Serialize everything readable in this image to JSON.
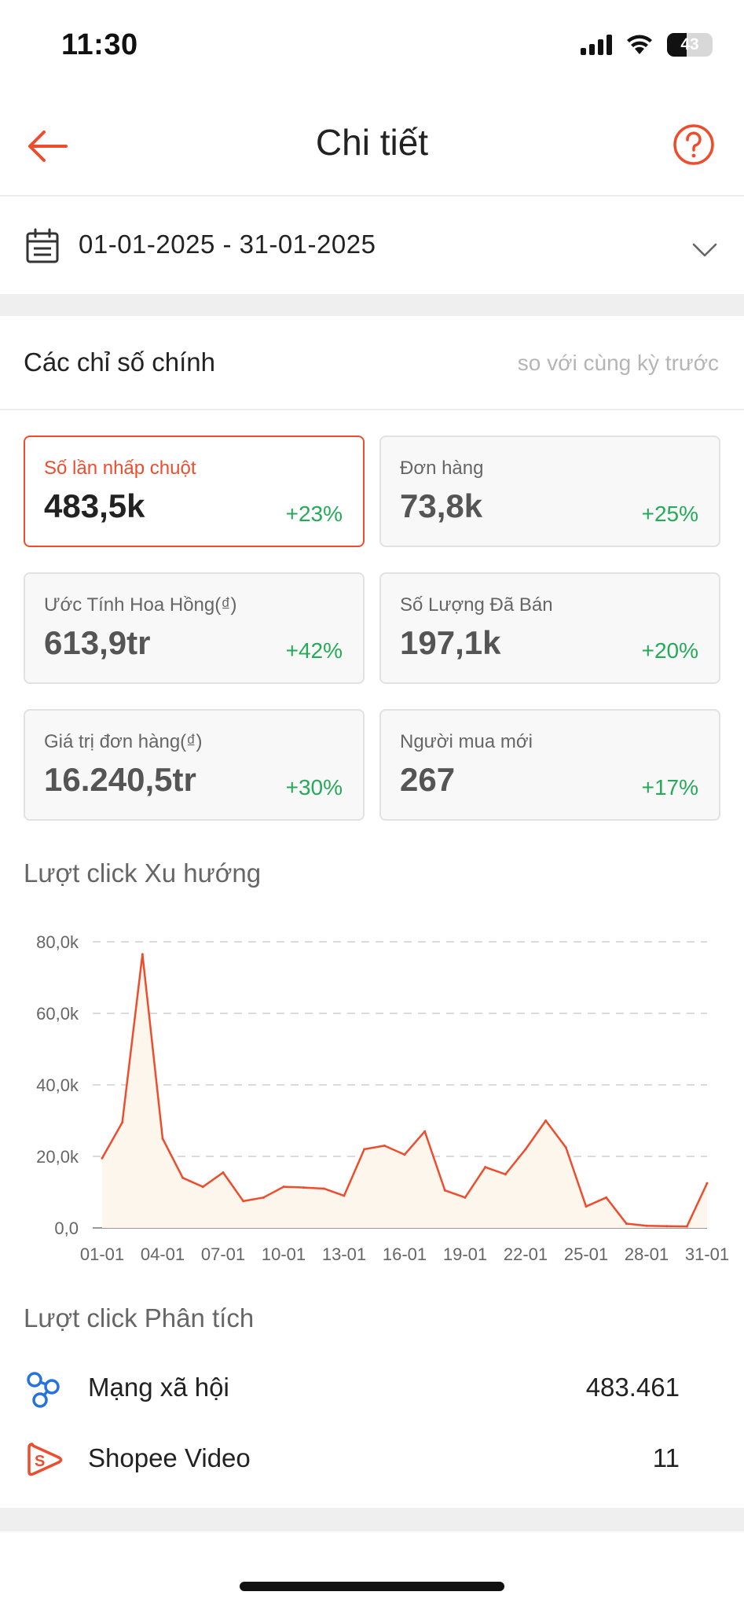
{
  "status_bar": {
    "time": "11:30",
    "battery": "43"
  },
  "header": {
    "title": "Chi tiết"
  },
  "date_range": {
    "value": "01-01-2025 - 31-01-2025"
  },
  "metrics": {
    "title": "Các chỉ số chính",
    "compare_label": "so với cùng kỳ trước",
    "cards": [
      {
        "label": "Số lần nhấp chuột",
        "value": "483,5k",
        "change": "+23%"
      },
      {
        "label": "Đơn hàng",
        "value": "73,8k",
        "change": "+25%"
      },
      {
        "label": "Ước Tính Hoa Hồng(₫)",
        "value": "613,9tr",
        "change": "+42%"
      },
      {
        "label": "Số Lượng Đã Bán",
        "value": "197,1k",
        "change": "+20%"
      },
      {
        "label": "Giá trị đơn hàng(₫)",
        "value": "16.240,5tr",
        "change": "+30%"
      },
      {
        "label": "Người mua mới",
        "value": "267",
        "change": "+17%"
      }
    ]
  },
  "chart_title": "Lượt click Xu hướng",
  "chart_data": {
    "type": "area",
    "title": "Lượt click Xu hướng",
    "xlabel": "",
    "ylabel": "",
    "ylim": [
      0,
      80000
    ],
    "ytick_labels": [
      "0,0",
      "20,0k",
      "40,0k",
      "60,0k",
      "80,0k"
    ],
    "yticks": [
      0,
      20000,
      40000,
      60000,
      80000
    ],
    "xtick_labels": [
      "01-01",
      "04-01",
      "07-01",
      "10-01",
      "13-01",
      "16-01",
      "19-01",
      "22-01",
      "25-01",
      "28-01",
      "31-01"
    ],
    "xticks": [
      1,
      4,
      7,
      10,
      13,
      16,
      19,
      22,
      25,
      28,
      31
    ],
    "grid": true,
    "color": "#ee4d2d",
    "x": [
      1,
      2,
      3,
      4,
      5,
      6,
      7,
      8,
      9,
      10,
      11,
      12,
      13,
      14,
      15,
      16,
      17,
      18,
      19,
      20,
      21,
      22,
      23,
      24,
      25,
      26,
      27,
      28,
      29,
      30,
      31
    ],
    "values": [
      19500,
      29500,
      76500,
      25000,
      14000,
      11500,
      15500,
      7500,
      8500,
      11500,
      11300,
      11000,
      9000,
      22000,
      23000,
      20500,
      27000,
      10500,
      8500,
      17000,
      15000,
      22000,
      30000,
      22500,
      6000,
      8500,
      1200,
      600,
      500,
      400,
      12500
    ]
  },
  "analysis": {
    "title": "Lượt click Phân tích",
    "items": [
      {
        "label": "Mạng xã hội",
        "value": "483.461",
        "icon": "social-network-icon"
      },
      {
        "label": "Shopee Video",
        "value": "11",
        "icon": "shopee-video-icon"
      }
    ]
  },
  "colors": {
    "brand": "#ee4d2d",
    "positive": "#26aa5a",
    "link_blue": "#2673dd"
  }
}
